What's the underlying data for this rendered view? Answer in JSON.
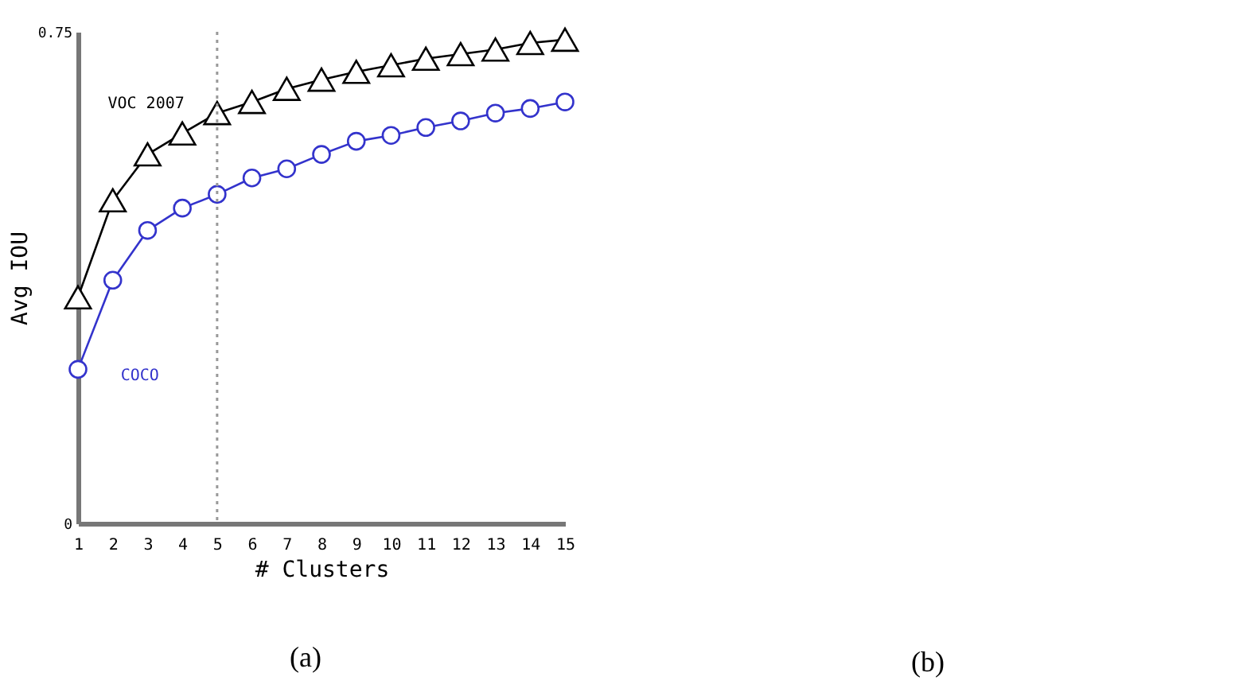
{
  "chart_data": {
    "type": "line",
    "xlabel": "# Clusters",
    "ylabel": "Avg IOU",
    "x": [
      1,
      2,
      3,
      4,
      5,
      6,
      7,
      8,
      9,
      10,
      11,
      12,
      13,
      14,
      15
    ],
    "series": [
      {
        "name": "VOC 2007",
        "color": "#000000",
        "marker": "triangle",
        "values": [
          0.345,
          0.493,
          0.563,
          0.595,
          0.626,
          0.643,
          0.663,
          0.677,
          0.689,
          0.699,
          0.709,
          0.716,
          0.723,
          0.733,
          0.738
        ]
      },
      {
        "name": "COCO",
        "color": "#3333cc",
        "marker": "circle",
        "values": [
          0.235,
          0.371,
          0.447,
          0.481,
          0.502,
          0.527,
          0.541,
          0.563,
          0.583,
          0.592,
          0.604,
          0.614,
          0.626,
          0.633,
          0.643
        ]
      }
    ],
    "xlim": [
      1,
      15
    ],
    "ylim": [
      0,
      0.75
    ],
    "xticks": [
      1,
      2,
      3,
      4,
      5,
      6,
      7,
      8,
      9,
      10,
      11,
      12,
      13,
      14,
      15
    ],
    "yticks": [
      0,
      0.75
    ],
    "ref_lines": [
      {
        "axis": "x",
        "value": 5,
        "color": "#999999",
        "line_style": "dotted"
      }
    ],
    "grid": false,
    "legend": false,
    "line_style": "solid",
    "annotations": [
      "(a)",
      "(b)"
    ]
  }
}
